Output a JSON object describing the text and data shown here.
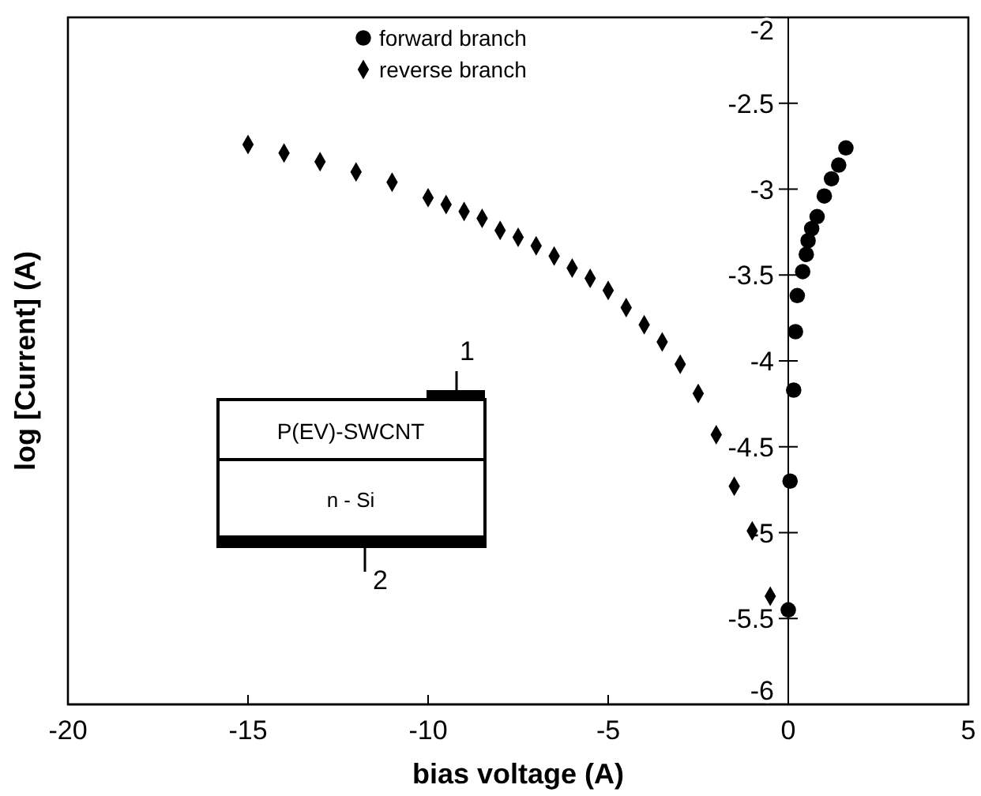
{
  "chart_data": {
    "type": "scatter",
    "xlabel": "bias voltage (A)",
    "ylabel": "log [Current] (A)",
    "xlim": [
      -20,
      5
    ],
    "xticks": [
      -20,
      -15,
      -10,
      -5,
      0,
      5
    ],
    "ylim": [
      -6,
      -2
    ],
    "yticks": [
      -6,
      -5.5,
      -5,
      -4.5,
      -4,
      -3.5,
      -3,
      -2.5,
      -2
    ],
    "legend": "top",
    "grid": false,
    "series": [
      {
        "name": "forward branch",
        "color": "#000000",
        "marker": "circle",
        "x": [
          0,
          0.05,
          0.15,
          0.2,
          0.25,
          0.4,
          0.5,
          0.55,
          0.65,
          0.8,
          1.0,
          1.2,
          1.4,
          1.6
        ],
        "values": [
          -5.45,
          -4.7,
          -4.17,
          -3.83,
          -3.62,
          -3.48,
          -3.38,
          -3.3,
          -3.23,
          -3.16,
          -3.04,
          -2.94,
          -2.86,
          -2.76
        ]
      },
      {
        "name": "reverse branch",
        "color": "#000000",
        "marker": "diamond",
        "x": [
          -15,
          -14,
          -13,
          -12,
          -11,
          -10,
          -9.5,
          -9,
          -8.5,
          -8,
          -7.5,
          -7,
          -6.5,
          -6,
          -5.5,
          -5,
          -4.5,
          -4,
          -3.5,
          -3,
          -2.5,
          -2,
          -1.5,
          -1,
          -0.5
        ],
        "values": [
          -2.74,
          -2.79,
          -2.84,
          -2.9,
          -2.96,
          -3.05,
          -3.09,
          -3.13,
          -3.17,
          -3.24,
          -3.28,
          -3.33,
          -3.39,
          -3.46,
          -3.52,
          -3.59,
          -3.69,
          -3.79,
          -3.89,
          -4.02,
          -4.19,
          -4.43,
          -4.73,
          -4.99,
          -5.37
        ]
      }
    ],
    "annotations": [
      "P(EV)-SWCNT",
      "n - Si",
      "1",
      "2"
    ]
  }
}
